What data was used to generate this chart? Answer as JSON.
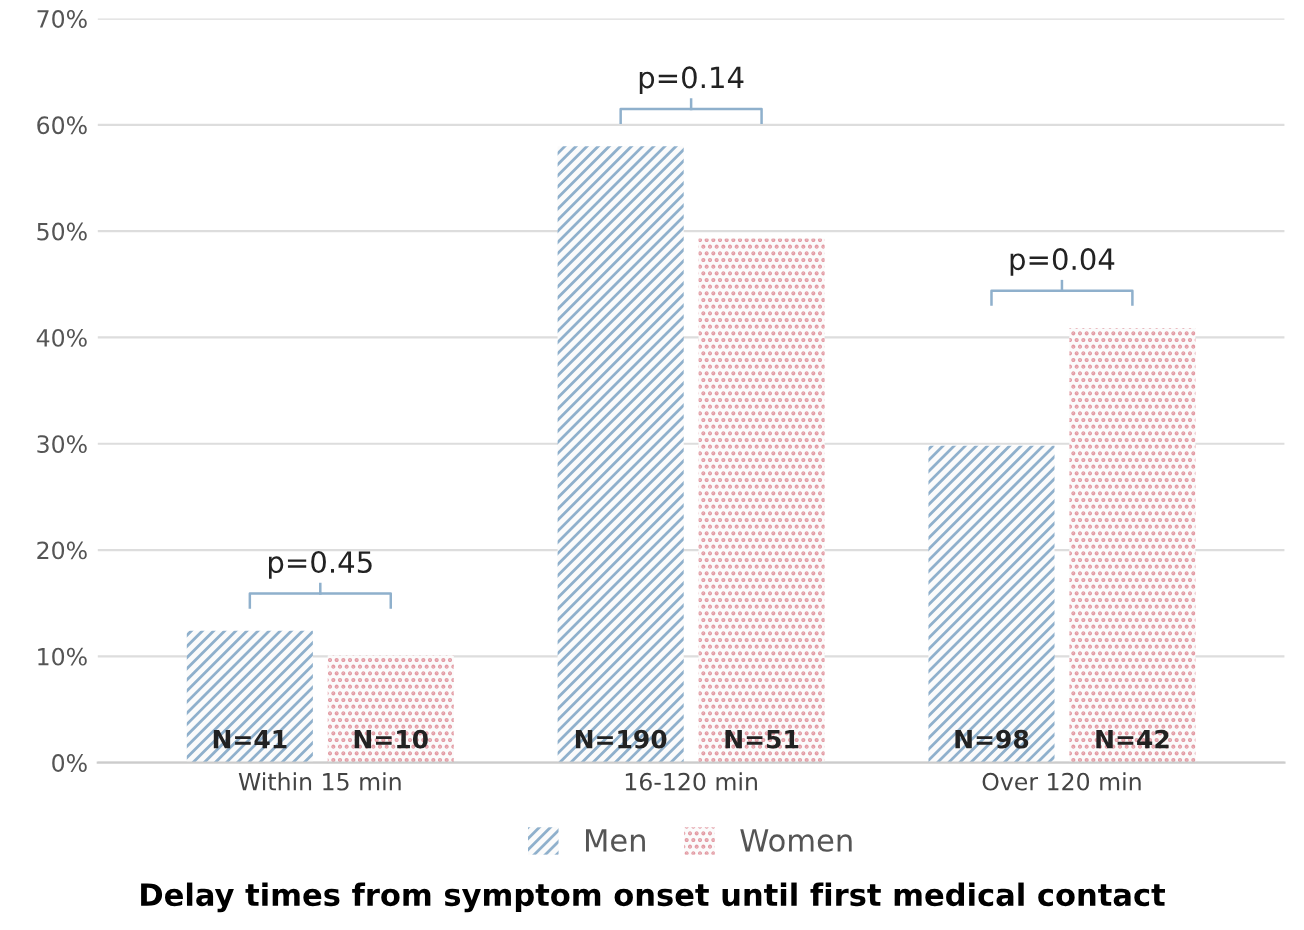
{
  "chart_data": {
    "type": "bar",
    "title": "Delay times from symptom onset until first medical contact",
    "categories": [
      "Within 15 min",
      "16-120 min",
      "Over 120 min"
    ],
    "series": [
      {
        "name": "Men",
        "color": "#8fb0cc",
        "values": [
          12.4,
          58.0,
          29.8
        ]
      },
      {
        "name": "Women",
        "color": "#e39aa3",
        "values": [
          10.1,
          49.3,
          40.9
        ]
      }
    ],
    "ylim": [
      0,
      70
    ],
    "yticks": [
      {
        "value": 0,
        "label": "0%"
      },
      {
        "value": 10,
        "label": "10%"
      },
      {
        "value": 20,
        "label": "20%"
      },
      {
        "value": 30,
        "label": "30%"
      },
      {
        "value": 40,
        "label": "40%"
      },
      {
        "value": 50,
        "label": "50%"
      },
      {
        "value": 60,
        "label": "60%"
      },
      {
        "value": 70,
        "label": "70%"
      }
    ],
    "annotations": [
      "p=0.45",
      "p=0.14",
      "p=0.04",
      {
        "text": "N=41",
        "x": "Within 15 min",
        "y": 2
      },
      {
        "text": "N=10",
        "x": "Within 15 min",
        "y": 2
      },
      {
        "text": "N=190",
        "x": "16-120 min",
        "y": 2
      },
      {
        "text": "N=51",
        "x": "16-120 min",
        "y": 2
      },
      {
        "text": "N=98",
        "x": "Over 120 min",
        "y": 2
      },
      {
        "text": "N=42",
        "x": "Over 120 min",
        "y": 2
      }
    ],
    "grid": "y",
    "legend": "bottom"
  }
}
